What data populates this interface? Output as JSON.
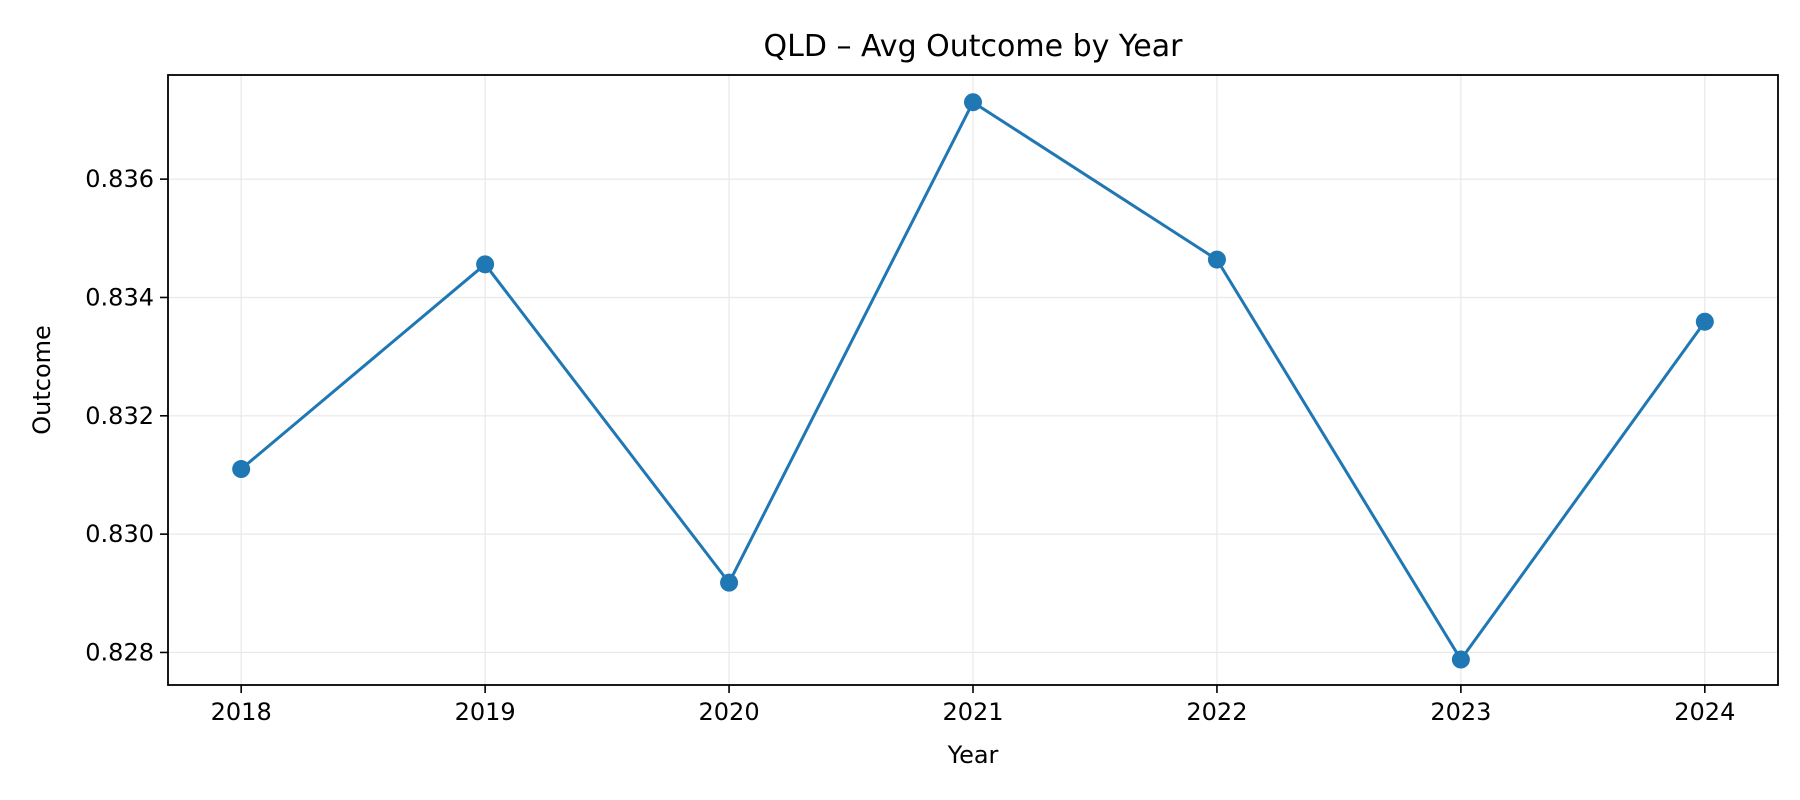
{
  "chart_data": {
    "type": "line",
    "title": "QLD – Avg Outcome by Year",
    "xlabel": "Year",
    "ylabel": "Outcome",
    "x": [
      2018,
      2019,
      2020,
      2021,
      2022,
      2023,
      2024
    ],
    "series": [
      {
        "values": [
          0.8311,
          0.83456,
          0.82918,
          0.8373,
          0.83464,
          0.82788,
          0.83359
        ],
        "color": "#1f77b4"
      }
    ],
    "xlim": [
      2017.7,
      2024.3
    ],
    "ylim": [
      0.82745,
      0.83776
    ],
    "yticks": [
      0.828,
      0.83,
      0.832,
      0.834,
      0.836
    ],
    "ytick_labels": [
      "0.828",
      "0.830",
      "0.832",
      "0.834",
      "0.836"
    ],
    "xtick_labels": [
      "2018",
      "2019",
      "2020",
      "2021",
      "2022",
      "2023",
      "2024"
    ],
    "grid": true,
    "marker": "circle"
  }
}
